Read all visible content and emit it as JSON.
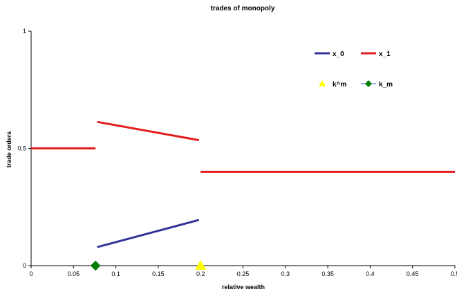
{
  "chart_data": {
    "type": "line",
    "title": "trades of monopoly",
    "xlabel": "relative wealth",
    "ylabel": "trade orders",
    "xlim": [
      0,
      0.5
    ],
    "ylim": [
      0,
      1
    ],
    "x_ticks": [
      "0",
      "0.05",
      "0.1",
      "0.15",
      "0.2",
      "0.25",
      "0.3",
      "0.35",
      "0.4",
      "0.45",
      "0.5"
    ],
    "y_ticks": [
      "0",
      "0.5",
      "1"
    ],
    "grid": false,
    "legend_position": "top-right",
    "series": [
      {
        "name": "x_0",
        "kind": "line",
        "color": "#333399",
        "segments": [
          [
            [
              0.078,
              0.079
            ],
            [
              0.198,
              0.195
            ]
          ]
        ]
      },
      {
        "name": "x_1",
        "kind": "line",
        "color": "#e31c1c",
        "segments": [
          [
            [
              0.0,
              0.5
            ],
            [
              0.076,
              0.5
            ]
          ],
          [
            [
              0.078,
              0.613
            ],
            [
              0.198,
              0.535
            ]
          ],
          [
            [
              0.2,
              0.4
            ],
            [
              0.5,
              0.4
            ]
          ]
        ]
      },
      {
        "name": "k^m",
        "kind": "marker",
        "marker": "triangle",
        "color": "#ffff00",
        "points": [
          [
            0.2,
            0.0
          ]
        ]
      },
      {
        "name": "k_m",
        "kind": "marker",
        "marker": "diamond",
        "color": "#008000",
        "points": [
          [
            0.076,
            0.0
          ]
        ]
      }
    ]
  }
}
